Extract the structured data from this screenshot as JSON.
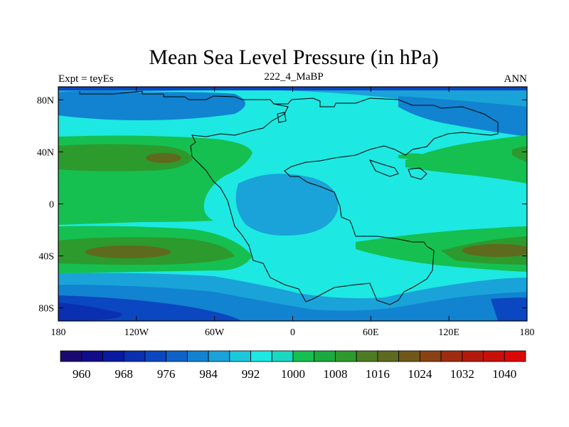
{
  "title": "Mean Sea Level Pressure (in hPa)",
  "subtitle_left": "Expt = teyEs",
  "subtitle_center": "222_4_MaBP",
  "subtitle_right": "ANN",
  "map": {
    "lon_range": [
      -180,
      180
    ],
    "lat_range": [
      -90,
      90
    ],
    "y_ticks": [
      "80N",
      "40N",
      "0",
      "40S",
      "80S"
    ],
    "y_tick_lats": [
      80,
      40,
      0,
      -40,
      -80
    ],
    "x_ticks": [
      "180",
      "120W",
      "60W",
      "0",
      "60E",
      "120E",
      "180"
    ],
    "x_tick_lons": [
      -180,
      -120,
      -60,
      0,
      60,
      120,
      180
    ]
  },
  "colorbar": {
    "colors": [
      "#1b0a6e",
      "#0f0d8a",
      "#0a1aa0",
      "#0a2fb0",
      "#0b47c0",
      "#0d63c8",
      "#1183d0",
      "#1aa3d8",
      "#1cc8dc",
      "#1de8e2",
      "#1bd8c0",
      "#15c050",
      "#1aaa40",
      "#2d9a2e",
      "#4e7c24",
      "#5e6a1e",
      "#70581a",
      "#8a4214",
      "#a02c10",
      "#b41a0c",
      "#c8100a",
      "#dc0808"
    ],
    "labels": [
      "960",
      "968",
      "976",
      "984",
      "992",
      "1000",
      "1008",
      "1016",
      "1024",
      "1032",
      "1040"
    ],
    "label_every": 2,
    "label_start_index": 1
  }
}
